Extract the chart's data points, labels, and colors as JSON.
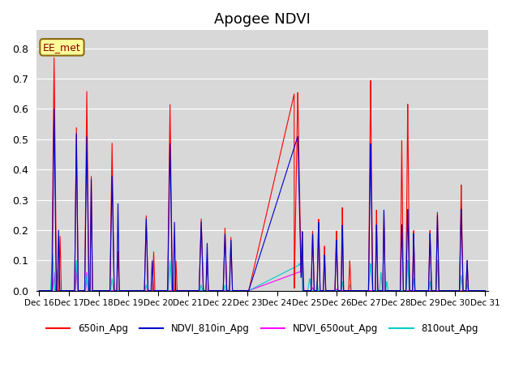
{
  "title": "Apogee NDVI",
  "annotation": "EE_met",
  "background_color": "#d8d8d8",
  "legend_entries": [
    "650in_Apg",
    "NDVI_810in_Apg",
    "NDVI_650out_Apg",
    "810out_Apg"
  ],
  "legend_colors": [
    "#ff0000",
    "#0000cc",
    "#ff00ff",
    "#00cccc"
  ],
  "ylim": [
    0.0,
    0.86
  ],
  "yticks": [
    0.0,
    0.1,
    0.2,
    0.3,
    0.4,
    0.5,
    0.6,
    0.7,
    0.8
  ],
  "colors": {
    "red": "#ff0000",
    "blue": "#0000cd",
    "magenta": "#ff00ff",
    "cyan": "#00cccc"
  },
  "x_labels": [
    "Dec 16",
    "Dec 17",
    "Dec 18",
    "Dec 19",
    "Dec 20",
    "Dec 21",
    "Dec 22",
    "Dec 23",
    "Dec 24",
    "Dec 25",
    "Dec 26",
    "Dec 27",
    "Dec 28",
    "Dec 29",
    "Dec 30",
    "Dec 31"
  ],
  "x_ticks": [
    0,
    1,
    2,
    3,
    4,
    5,
    6,
    7,
    8,
    9,
    10,
    11,
    12,
    13,
    14,
    15
  ]
}
